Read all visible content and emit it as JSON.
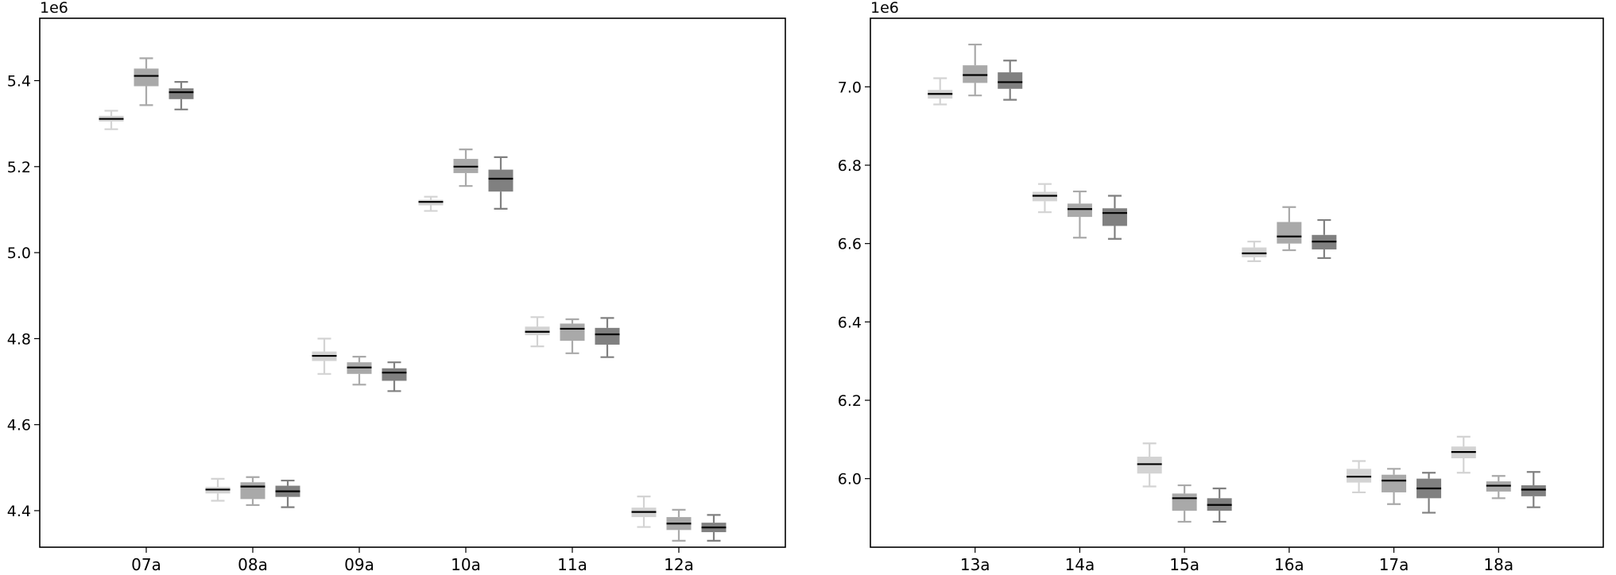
{
  "chart_data": [
    {
      "type": "box",
      "offset_label": "1e6",
      "categories": [
        "07a",
        "08a",
        "09a",
        "10a",
        "11a",
        "12a"
      ],
      "ylim": [
        4.315,
        5.545
      ],
      "yticks": [
        4.4,
        4.6,
        4.8,
        5.0,
        5.2,
        5.4
      ],
      "ytick_labels": [
        "4.4",
        "4.6",
        "4.8",
        "5.0",
        "5.2",
        "5.4"
      ],
      "series": [
        {
          "color": "#d3d3d3",
          "boxes": [
            {
              "whislo": 5.287,
              "q1": 5.305,
              "med": 5.311,
              "q3": 5.318,
              "whishi": 5.33
            },
            {
              "whislo": 4.423,
              "q1": 4.44,
              "med": 4.449,
              "q3": 4.455,
              "whishi": 4.474
            },
            {
              "whislo": 4.718,
              "q1": 4.748,
              "med": 4.76,
              "q3": 4.77,
              "whishi": 4.8
            },
            {
              "whislo": 5.097,
              "q1": 5.11,
              "med": 5.118,
              "q3": 5.123,
              "whishi": 5.13
            },
            {
              "whislo": 4.782,
              "q1": 4.808,
              "med": 4.816,
              "q3": 4.828,
              "whishi": 4.85
            },
            {
              "whislo": 4.362,
              "q1": 4.385,
              "med": 4.397,
              "q3": 4.407,
              "whishi": 4.433
            }
          ]
        },
        {
          "color": "#a9a9a9",
          "boxes": [
            {
              "whislo": 5.343,
              "q1": 5.387,
              "med": 5.411,
              "q3": 5.428,
              "whishi": 5.452
            },
            {
              "whislo": 4.413,
              "q1": 4.427,
              "med": 4.456,
              "q3": 4.466,
              "whishi": 4.478
            },
            {
              "whislo": 4.693,
              "q1": 4.718,
              "med": 4.733,
              "q3": 4.745,
              "whishi": 4.758
            },
            {
              "whislo": 5.155,
              "q1": 5.185,
              "med": 5.2,
              "q3": 5.218,
              "whishi": 5.24
            },
            {
              "whislo": 4.766,
              "q1": 4.795,
              "med": 4.823,
              "q3": 4.835,
              "whishi": 4.845
            },
            {
              "whislo": 4.33,
              "q1": 4.355,
              "med": 4.37,
              "q3": 4.385,
              "whishi": 4.402
            }
          ]
        },
        {
          "color": "#808080",
          "boxes": [
            {
              "whislo": 5.333,
              "q1": 5.357,
              "med": 5.373,
              "q3": 5.382,
              "whishi": 5.397
            },
            {
              "whislo": 4.408,
              "q1": 4.432,
              "med": 4.445,
              "q3": 4.458,
              "whishi": 4.47
            },
            {
              "whislo": 4.678,
              "q1": 4.702,
              "med": 4.721,
              "q3": 4.731,
              "whishi": 4.745
            },
            {
              "whislo": 5.102,
              "q1": 5.142,
              "med": 5.172,
              "q3": 5.193,
              "whishi": 5.222
            },
            {
              "whislo": 4.757,
              "q1": 4.786,
              "med": 4.81,
              "q3": 4.825,
              "whishi": 4.848
            },
            {
              "whislo": 4.33,
              "q1": 4.35,
              "med": 4.361,
              "q3": 4.372,
              "whishi": 4.39
            }
          ]
        }
      ]
    },
    {
      "type": "box",
      "offset_label": "1e6",
      "categories": [
        "13a",
        "14a",
        "15a",
        "16a",
        "17a",
        "18a"
      ],
      "ylim": [
        5.825,
        7.175
      ],
      "yticks": [
        6.0,
        6.2,
        6.4,
        6.6,
        6.8,
        7.0
      ],
      "ytick_labels": [
        "6.0",
        "6.2",
        "6.4",
        "6.6",
        "6.8",
        "7.0"
      ],
      "series": [
        {
          "color": "#d3d3d3",
          "boxes": [
            {
              "whislo": 6.955,
              "q1": 6.97,
              "med": 6.982,
              "q3": 6.992,
              "whishi": 7.022
            },
            {
              "whislo": 6.68,
              "q1": 6.708,
              "med": 6.722,
              "q3": 6.732,
              "whishi": 6.752
            },
            {
              "whislo": 5.98,
              "q1": 6.013,
              "med": 6.037,
              "q3": 6.056,
              "whishi": 6.09
            },
            {
              "whislo": 6.555,
              "q1": 6.565,
              "med": 6.575,
              "q3": 6.59,
              "whishi": 6.605
            },
            {
              "whislo": 5.965,
              "q1": 5.99,
              "med": 6.005,
              "q3": 6.025,
              "whishi": 6.045
            },
            {
              "whislo": 6.015,
              "q1": 6.052,
              "med": 6.068,
              "q3": 6.082,
              "whishi": 6.107
            }
          ]
        },
        {
          "color": "#a9a9a9",
          "boxes": [
            {
              "whislo": 6.978,
              "q1": 7.01,
              "med": 7.03,
              "q3": 7.055,
              "whishi": 7.108
            },
            {
              "whislo": 6.615,
              "q1": 6.668,
              "med": 6.688,
              "q3": 6.702,
              "whishi": 6.733
            },
            {
              "whislo": 5.89,
              "q1": 5.918,
              "med": 5.95,
              "q3": 5.962,
              "whishi": 5.983
            },
            {
              "whislo": 6.583,
              "q1": 6.6,
              "med": 6.618,
              "q3": 6.655,
              "whishi": 6.693
            },
            {
              "whislo": 5.935,
              "q1": 5.965,
              "med": 5.995,
              "q3": 6.01,
              "whishi": 6.025
            },
            {
              "whislo": 5.95,
              "q1": 5.967,
              "med": 5.982,
              "q3": 5.993,
              "whishi": 6.007
            }
          ]
        },
        {
          "color": "#808080",
          "boxes": [
            {
              "whislo": 6.967,
              "q1": 6.995,
              "med": 7.012,
              "q3": 7.037,
              "whishi": 7.067
            },
            {
              "whislo": 6.612,
              "q1": 6.645,
              "med": 6.678,
              "q3": 6.69,
              "whishi": 6.722
            },
            {
              "whislo": 5.89,
              "q1": 5.918,
              "med": 5.933,
              "q3": 5.95,
              "whishi": 5.975
            },
            {
              "whislo": 6.563,
              "q1": 6.585,
              "med": 6.605,
              "q3": 6.622,
              "whishi": 6.66
            },
            {
              "whislo": 5.913,
              "q1": 5.95,
              "med": 5.975,
              "q3": 6.0,
              "whishi": 6.015
            },
            {
              "whislo": 5.927,
              "q1": 5.955,
              "med": 5.972,
              "q3": 5.983,
              "whishi": 6.017
            }
          ]
        }
      ]
    }
  ]
}
